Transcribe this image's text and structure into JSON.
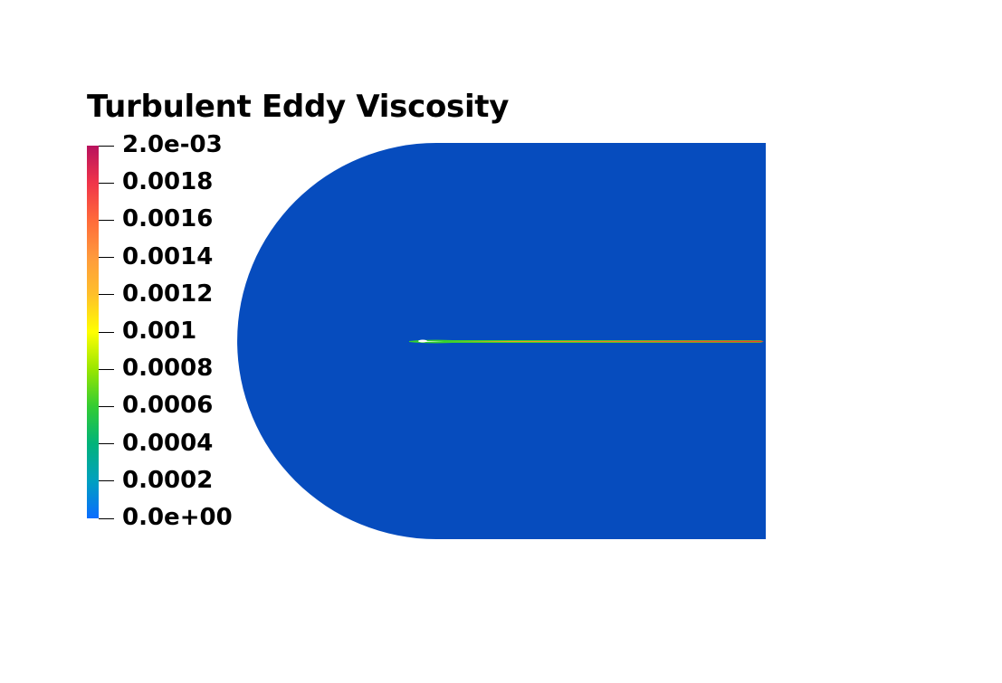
{
  "legend": {
    "title": "Turbulent Eddy Viscosity",
    "ticks": [
      {
        "value": 0.002,
        "label": "2.0e-03"
      },
      {
        "value": 0.0018,
        "label": "0.0018"
      },
      {
        "value": 0.0016,
        "label": "0.0016"
      },
      {
        "value": 0.0014,
        "label": "0.0014"
      },
      {
        "value": 0.0012,
        "label": "0.0012"
      },
      {
        "value": 0.001,
        "label": "0.001"
      },
      {
        "value": 0.0008,
        "label": "0.0008"
      },
      {
        "value": 0.0006,
        "label": "0.0006"
      },
      {
        "value": 0.0004,
        "label": "0.0004"
      },
      {
        "value": 0.0002,
        "label": "0.0002"
      },
      {
        "value": 0,
        "label": "0.0e+00"
      }
    ],
    "range": [
      0,
      0.002
    ],
    "colormap": [
      "#0a6cff",
      "#00a0c0",
      "#00b37a",
      "#33cc33",
      "#99e600",
      "#ffff00",
      "#ffc02a",
      "#ff9a3c",
      "#ff6a3a",
      "#f0344a",
      "#b8125e"
    ]
  },
  "colors": {
    "domain": "#064cbe",
    "wake_core": "#f03a2e",
    "wake_edge": "#36d12e"
  }
}
